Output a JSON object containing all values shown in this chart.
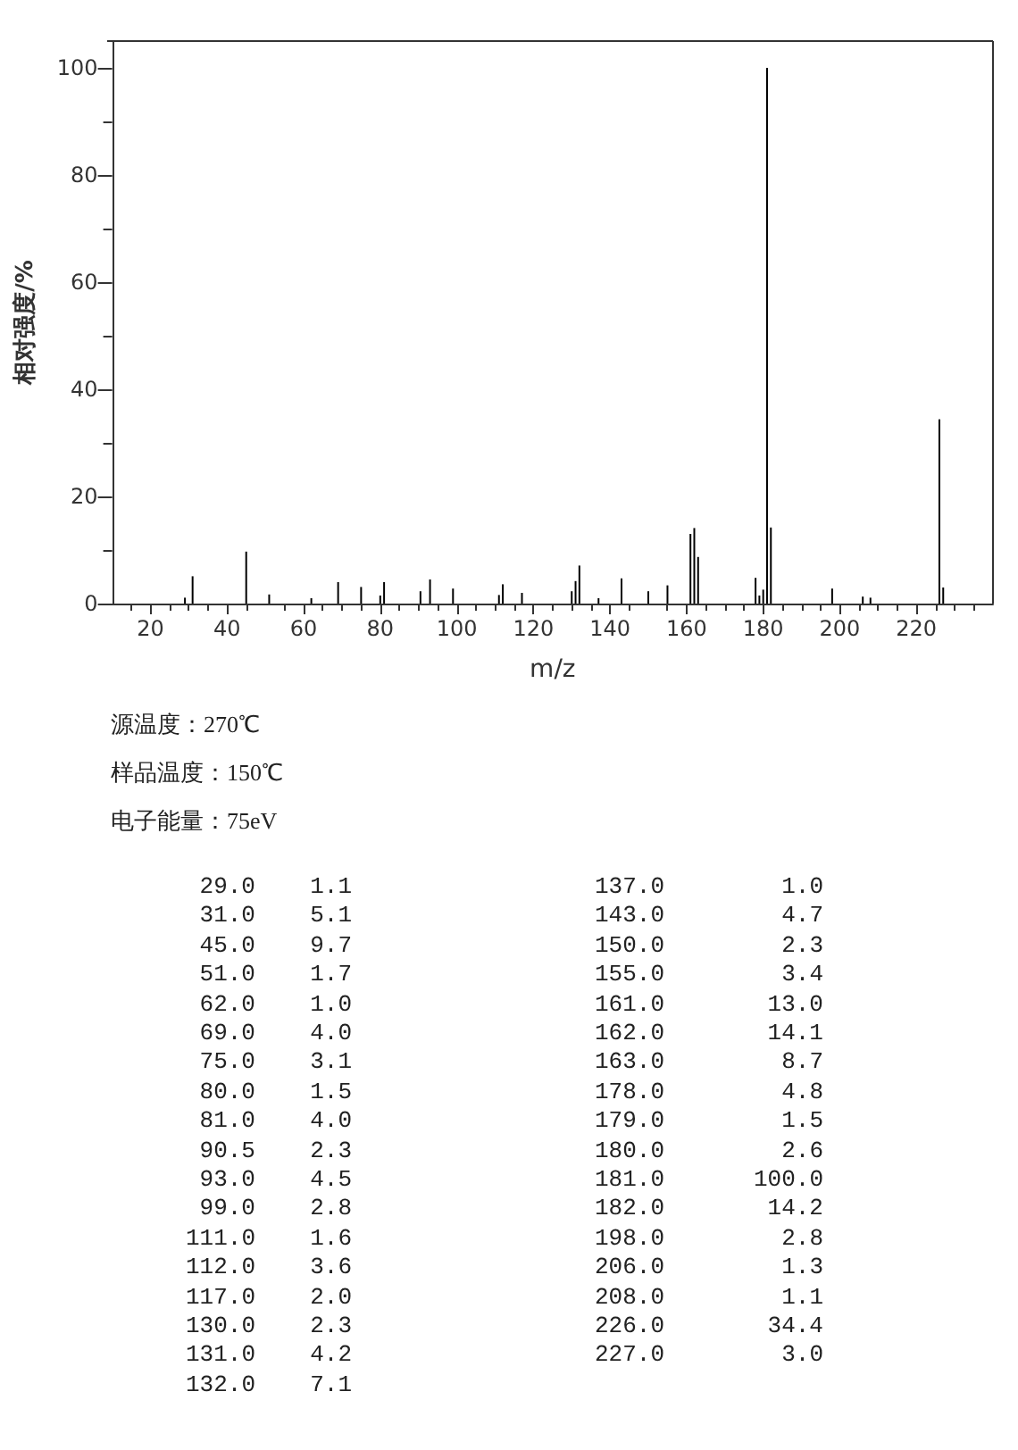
{
  "chart_data": [
    {
      "type": "bar",
      "xlabel": "m/z",
      "ylabel": "相对强度/%",
      "color": "#000000",
      "x": [
        29,
        31,
        45,
        51,
        62,
        69,
        75,
        80,
        81,
        90.5,
        93,
        99,
        111,
        112,
        117,
        130,
        131,
        132,
        137,
        143,
        150,
        155,
        161,
        162,
        163,
        178,
        179,
        180,
        181,
        182,
        198,
        206,
        208,
        226,
        227
      ],
      "values": [
        1.1,
        5.1,
        9.7,
        1.7,
        1.0,
        4.0,
        3.1,
        1.5,
        4.0,
        2.3,
        4.5,
        2.8,
        1.6,
        3.6,
        2.0,
        2.3,
        4.2,
        7.1,
        1.0,
        4.7,
        2.3,
        3.4,
        13.0,
        14.1,
        8.7,
        4.8,
        1.5,
        2.6,
        100.0,
        14.2,
        2.8,
        1.3,
        1.1,
        34.4,
        3.0
      ],
      "xlim": [
        10,
        240
      ],
      "xticks": [
        20,
        40,
        60,
        80,
        100,
        120,
        140,
        160,
        180,
        200,
        220
      ],
      "ylim": [
        0,
        105
      ],
      "yticks": [
        0,
        20,
        40,
        60,
        80,
        100
      ],
      "grid": false,
      "annotations": [
        "源温度：270℃",
        "样品温度：150℃",
        "电子能量：75eV"
      ]
    },
    {
      "type": "other",
      "annotations": [
        "29.0",
        "1.1",
        "31.0",
        "5.1",
        "45.0",
        "9.7",
        "51.0",
        "1.7",
        "62.0",
        "1.0",
        "69.0",
        "4.0",
        "75.0",
        "3.1",
        "80.0",
        "1.5",
        "81.0",
        "4.0",
        "90.5",
        "2.3",
        "93.0",
        "4.5",
        "99.0",
        "2.8",
        "111.0",
        "1.6",
        "112.0",
        "3.6",
        "117.0",
        "2.0",
        "130.0",
        "2.3",
        "131.0",
        "4.2",
        "132.0",
        "7.1",
        "137.0",
        "1.0",
        "143.0",
        "4.7",
        "150.0",
        "2.3",
        "155.0",
        "3.4",
        "161.0",
        "13.0",
        "162.0",
        "14.1",
        "163.0",
        "8.7",
        "178.0",
        "4.8",
        "179.0",
        "1.5",
        "180.0",
        "2.6",
        "181.0",
        "100.0",
        "182.0",
        "14.2",
        "198.0",
        "2.8",
        "206.0",
        "1.3",
        "208.0",
        "1.1",
        "226.0",
        "34.4",
        "227.0",
        "3.0"
      ]
    }
  ]
}
